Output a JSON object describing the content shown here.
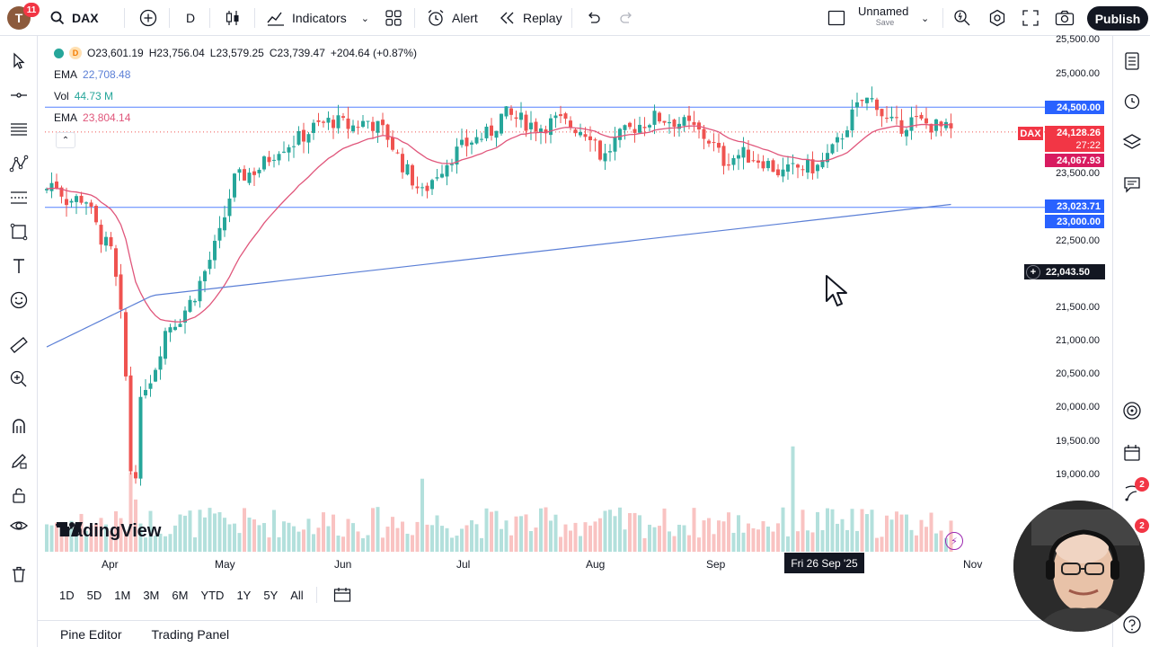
{
  "topbar": {
    "avatar_letter": "T",
    "avatar_badge": "11",
    "symbol": "DAX",
    "interval": "D",
    "indicators_label": "Indicators",
    "alert_label": "Alert",
    "replay_label": "Replay",
    "layout_name": "Unnamed",
    "layout_save": "Save",
    "publish_label": "Publish"
  },
  "legend": {
    "ohlc_open": "O23,601.19",
    "ohlc_high": "H23,756.04",
    "ohlc_low": "L23,579.25",
    "ohlc_close": "C23,739.47",
    "ohlc_change": "+204.64 (+0.87%)",
    "ema1_label": "EMA",
    "ema1_value": "22,708.48",
    "vol_label": "Vol",
    "vol_value": "44.73 M",
    "ema2_label": "EMA",
    "ema2_value": "23,804.14"
  },
  "price_axis": {
    "ticks": [
      "25,500.00",
      "25,000.00",
      "23,500.00",
      "22,500.00",
      "21,500.00",
      "21,000.00",
      "20,500.00",
      "20,000.00",
      "19,500.00",
      "19,000.00"
    ],
    "tag_24500": "24,500.00",
    "tag_dax": "DAX",
    "tag_price": "24,128.26",
    "tag_countdown": "27:22",
    "tag_ema": "24,067.93",
    "tag_23023": "23,023.71",
    "tag_23000": "23,000.00",
    "tag_crosshair": "22,043.50"
  },
  "time_axis": {
    "labels": [
      "Apr",
      "May",
      "Jun",
      "Jul",
      "Aug",
      "Sep",
      "Nov"
    ],
    "crosshair_date": "Fri 26 Sep '25"
  },
  "watermark": "TradingView",
  "range_buttons": [
    "1D",
    "5D",
    "1M",
    "3M",
    "6M",
    "YTD",
    "1Y",
    "5Y",
    "All"
  ],
  "bottom_tabs": [
    "Pine Editor",
    "Trading Panel"
  ],
  "right_badges": [
    "2",
    "2"
  ],
  "colors": {
    "up": "#26a69a",
    "down": "#ef5350",
    "ema_fast": "#e0567b",
    "ema_slow": "#5b7fd6",
    "hline": "#2962ff",
    "tag_blue": "#2962ff",
    "tag_red": "#f23645",
    "tag_magenta": "#d81b60"
  },
  "chart_data": {
    "type": "candlestick",
    "symbol": "DAX",
    "interval": "D",
    "ylim": [
      18500,
      25600
    ],
    "horizontal_lines": [
      24500,
      23000
    ],
    "series": [
      {
        "name": "EMA",
        "value": 22708.48
      },
      {
        "name": "EMA",
        "value": 23804.14
      },
      {
        "name": "Vol",
        "value": "44.73 M"
      }
    ]
  }
}
